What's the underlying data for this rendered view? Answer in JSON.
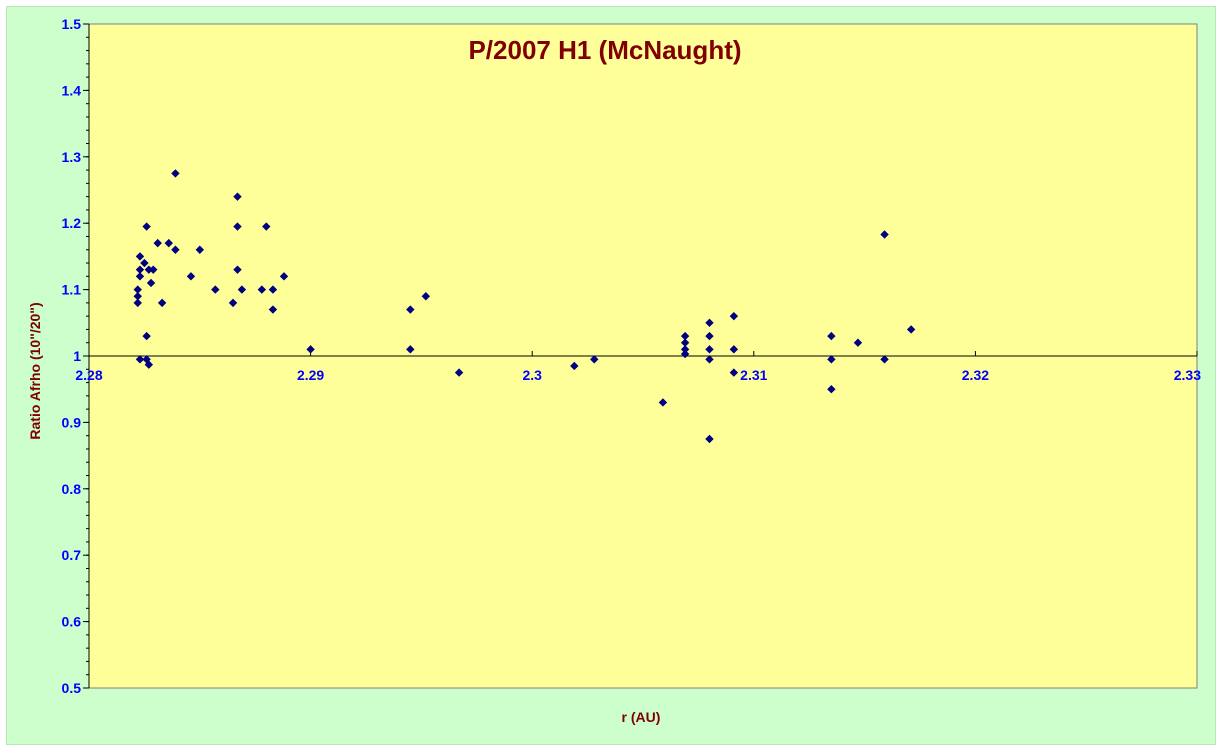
{
  "chart_data": {
    "type": "scatter",
    "title": "P/2007 H1 (McNaught)",
    "xlabel": "r (AU)",
    "ylabel": "Ratio Afrho (10\"/20\")",
    "xlim": [
      2.28,
      2.33
    ],
    "ylim": [
      0.5,
      1.5
    ],
    "x_ticks": [
      "2.28",
      "2.29",
      "2.3",
      "2.31",
      "2.32",
      "2.33"
    ],
    "y_ticks": [
      "0.5",
      "0.6",
      "0.7",
      "0.8",
      "0.9",
      "1",
      "1.1",
      "1.2",
      "1.3",
      "1.4",
      "1.5"
    ],
    "x_axis_crosses_at": 1.0,
    "grid": false,
    "legend": "none",
    "colors": {
      "plot_background": "#ffff99",
      "chart_background": "#ccffcc",
      "marker": "#000080",
      "tick_labels": "#0000ff",
      "titles": "#800000"
    },
    "points": [
      {
        "x": 2.2823,
        "y": 1.15
      },
      {
        "x": 2.2823,
        "y": 1.13
      },
      {
        "x": 2.2823,
        "y": 1.12
      },
      {
        "x": 2.2822,
        "y": 1.1
      },
      {
        "x": 2.2822,
        "y": 1.09
      },
      {
        "x": 2.2822,
        "y": 1.08
      },
      {
        "x": 2.2823,
        "y": 0.995
      },
      {
        "x": 2.2825,
        "y": 1.14
      },
      {
        "x": 2.2826,
        "y": 1.195
      },
      {
        "x": 2.2827,
        "y": 1.13
      },
      {
        "x": 2.2828,
        "y": 1.11
      },
      {
        "x": 2.2829,
        "y": 1.13
      },
      {
        "x": 2.2826,
        "y": 1.03
      },
      {
        "x": 2.2826,
        "y": 0.995
      },
      {
        "x": 2.2827,
        "y": 0.987
      },
      {
        "x": 2.2831,
        "y": 1.17
      },
      {
        "x": 2.2833,
        "y": 1.08
      },
      {
        "x": 2.2836,
        "y": 1.17
      },
      {
        "x": 2.2839,
        "y": 1.275
      },
      {
        "x": 2.2839,
        "y": 1.16
      },
      {
        "x": 2.2846,
        "y": 1.12
      },
      {
        "x": 2.285,
        "y": 1.16
      },
      {
        "x": 2.2857,
        "y": 1.1
      },
      {
        "x": 2.2865,
        "y": 1.08
      },
      {
        "x": 2.2867,
        "y": 1.24
      },
      {
        "x": 2.2867,
        "y": 1.195
      },
      {
        "x": 2.2867,
        "y": 1.13
      },
      {
        "x": 2.2869,
        "y": 1.1
      },
      {
        "x": 2.2878,
        "y": 1.1
      },
      {
        "x": 2.288,
        "y": 1.195
      },
      {
        "x": 2.2883,
        "y": 1.1
      },
      {
        "x": 2.2883,
        "y": 1.07
      },
      {
        "x": 2.2888,
        "y": 1.12
      },
      {
        "x": 2.29,
        "y": 1.01
      },
      {
        "x": 2.2945,
        "y": 1.07
      },
      {
        "x": 2.2945,
        "y": 1.01
      },
      {
        "x": 2.2952,
        "y": 1.09
      },
      {
        "x": 2.2967,
        "y": 0.975
      },
      {
        "x": 2.3019,
        "y": 0.985
      },
      {
        "x": 2.3028,
        "y": 0.995
      },
      {
        "x": 2.3059,
        "y": 0.93
      },
      {
        "x": 2.3069,
        "y": 1.03
      },
      {
        "x": 2.3069,
        "y": 1.02
      },
      {
        "x": 2.3069,
        "y": 1.01
      },
      {
        "x": 2.3069,
        "y": 1.003
      },
      {
        "x": 2.308,
        "y": 1.05
      },
      {
        "x": 2.308,
        "y": 1.03
      },
      {
        "x": 2.308,
        "y": 1.01
      },
      {
        "x": 2.308,
        "y": 0.995
      },
      {
        "x": 2.308,
        "y": 0.875
      },
      {
        "x": 2.3091,
        "y": 1.06
      },
      {
        "x": 2.3091,
        "y": 1.01
      },
      {
        "x": 2.3091,
        "y": 0.975
      },
      {
        "x": 2.3135,
        "y": 1.03
      },
      {
        "x": 2.3135,
        "y": 0.995
      },
      {
        "x": 2.3135,
        "y": 0.95
      },
      {
        "x": 2.3147,
        "y": 1.02
      },
      {
        "x": 2.3159,
        "y": 1.183
      },
      {
        "x": 2.3159,
        "y": 0.995
      },
      {
        "x": 2.3171,
        "y": 1.04
      }
    ]
  }
}
